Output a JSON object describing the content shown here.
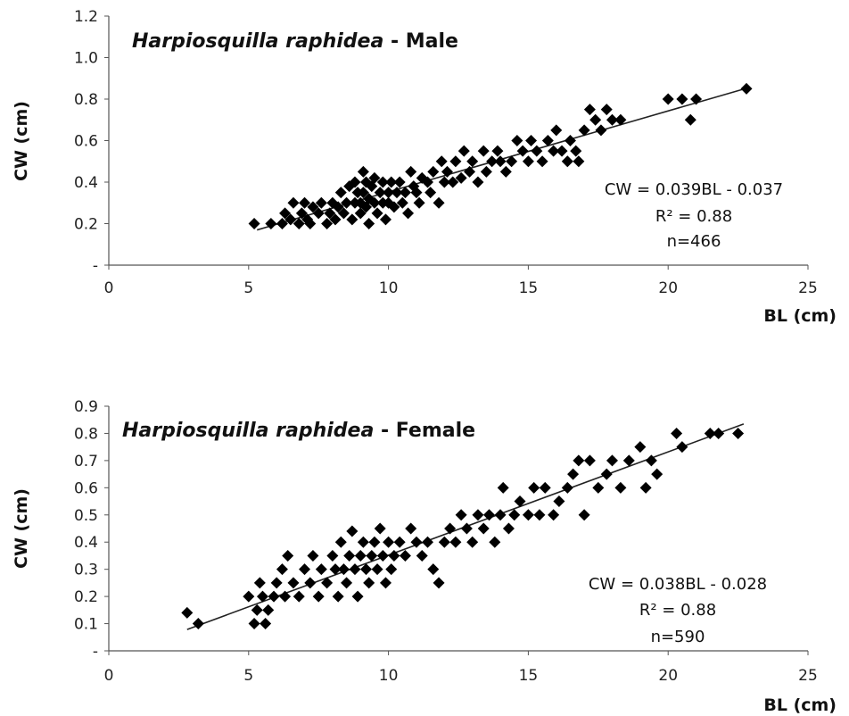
{
  "chart_data": [
    {
      "type": "scatter",
      "title_species": "Harpiosquilla raphidea",
      "title_sex": " - Male",
      "xlabel": "BL (cm)",
      "ylabel": "CW (cm)",
      "xlim": [
        0,
        25
      ],
      "ylim": [
        0,
        1.2
      ],
      "x_ticks": [
        "0",
        "5",
        "10",
        "15",
        "20",
        "25"
      ],
      "y_ticks": [
        "-",
        "0.2",
        "0.4",
        "0.6",
        "0.8",
        "1.0",
        "1.2"
      ],
      "y_tick_values": [
        0,
        0.2,
        0.4,
        0.6,
        0.8,
        1.0,
        1.2
      ],
      "grid": false,
      "legend": "none",
      "marker_color": "#000000",
      "annotation": [
        "CW = 0.039BL - 0.037",
        "R² = 0.88",
        "n=466"
      ],
      "trendline": {
        "slope": 0.039,
        "intercept": -0.037,
        "x_range": [
          5.3,
          22.8
        ]
      },
      "points": [
        [
          5.2,
          0.2
        ],
        [
          5.8,
          0.2
        ],
        [
          6.2,
          0.2
        ],
        [
          6.3,
          0.25
        ],
        [
          6.5,
          0.22
        ],
        [
          6.6,
          0.3
        ],
        [
          6.8,
          0.2
        ],
        [
          6.9,
          0.25
        ],
        [
          7.0,
          0.3
        ],
        [
          7.1,
          0.22
        ],
        [
          7.2,
          0.2
        ],
        [
          7.3,
          0.28
        ],
        [
          7.5,
          0.25
        ],
        [
          7.6,
          0.3
        ],
        [
          7.8,
          0.2
        ],
        [
          7.9,
          0.25
        ],
        [
          8.0,
          0.3
        ],
        [
          8.1,
          0.22
        ],
        [
          8.2,
          0.28
        ],
        [
          8.3,
          0.35
        ],
        [
          8.4,
          0.25
        ],
        [
          8.5,
          0.3
        ],
        [
          8.6,
          0.38
        ],
        [
          8.7,
          0.22
        ],
        [
          8.8,
          0.3
        ],
        [
          8.8,
          0.4
        ],
        [
          8.9,
          0.35
        ],
        [
          9.0,
          0.25
        ],
        [
          9.0,
          0.3
        ],
        [
          9.1,
          0.45
        ],
        [
          9.1,
          0.35
        ],
        [
          9.2,
          0.28
        ],
        [
          9.2,
          0.4
        ],
        [
          9.3,
          0.32
        ],
        [
          9.3,
          0.2
        ],
        [
          9.4,
          0.38
        ],
        [
          9.5,
          0.3
        ],
        [
          9.5,
          0.42
        ],
        [
          9.6,
          0.25
        ],
        [
          9.7,
          0.35
        ],
        [
          9.8,
          0.3
        ],
        [
          9.8,
          0.4
        ],
        [
          9.9,
          0.22
        ],
        [
          10.0,
          0.35
        ],
        [
          10.0,
          0.3
        ],
        [
          10.1,
          0.4
        ],
        [
          10.2,
          0.28
        ],
        [
          10.3,
          0.35
        ],
        [
          10.4,
          0.4
        ],
        [
          10.5,
          0.3
        ],
        [
          10.6,
          0.35
        ],
        [
          10.7,
          0.25
        ],
        [
          10.8,
          0.45
        ],
        [
          10.9,
          0.38
        ],
        [
          11.0,
          0.35
        ],
        [
          11.1,
          0.3
        ],
        [
          11.2,
          0.42
        ],
        [
          11.4,
          0.4
        ],
        [
          11.5,
          0.35
        ],
        [
          11.6,
          0.45
        ],
        [
          11.8,
          0.3
        ],
        [
          11.9,
          0.5
        ],
        [
          12.0,
          0.4
        ],
        [
          12.1,
          0.45
        ],
        [
          12.3,
          0.4
        ],
        [
          12.4,
          0.5
        ],
        [
          12.6,
          0.42
        ],
        [
          12.7,
          0.55
        ],
        [
          12.9,
          0.45
        ],
        [
          13.0,
          0.5
        ],
        [
          13.2,
          0.4
        ],
        [
          13.4,
          0.55
        ],
        [
          13.5,
          0.45
        ],
        [
          13.7,
          0.5
        ],
        [
          13.9,
          0.55
        ],
        [
          14.0,
          0.5
        ],
        [
          14.2,
          0.45
        ],
        [
          14.4,
          0.5
        ],
        [
          14.6,
          0.6
        ],
        [
          14.8,
          0.55
        ],
        [
          15.0,
          0.5
        ],
        [
          15.1,
          0.6
        ],
        [
          15.3,
          0.55
        ],
        [
          15.5,
          0.5
        ],
        [
          15.7,
          0.6
        ],
        [
          15.9,
          0.55
        ],
        [
          16.0,
          0.65
        ],
        [
          16.2,
          0.55
        ],
        [
          16.4,
          0.5
        ],
        [
          16.5,
          0.6
        ],
        [
          16.7,
          0.55
        ],
        [
          16.8,
          0.5
        ],
        [
          17.0,
          0.65
        ],
        [
          17.2,
          0.75
        ],
        [
          17.4,
          0.7
        ],
        [
          17.6,
          0.65
        ],
        [
          17.8,
          0.75
        ],
        [
          18.0,
          0.7
        ],
        [
          18.3,
          0.7
        ],
        [
          20.0,
          0.8
        ],
        [
          20.5,
          0.8
        ],
        [
          20.8,
          0.7
        ],
        [
          21.0,
          0.8
        ],
        [
          22.8,
          0.85
        ]
      ]
    },
    {
      "type": "scatter",
      "title_species": "Harpiosquilla raphidea",
      "title_sex": " - Female",
      "xlabel": "BL (cm)",
      "ylabel": "CW (cm)",
      "xlim": [
        0,
        25
      ],
      "ylim": [
        0,
        0.9
      ],
      "x_ticks": [
        "0",
        "5",
        "10",
        "15",
        "20",
        "25"
      ],
      "y_ticks": [
        "-",
        "0.1",
        "0.2",
        "0.3",
        "0.4",
        "0.5",
        "0.6",
        "0.7",
        "0.8",
        "0.9"
      ],
      "y_tick_values": [
        0,
        0.1,
        0.2,
        0.3,
        0.4,
        0.5,
        0.6,
        0.7,
        0.8,
        0.9
      ],
      "grid": false,
      "legend": "none",
      "marker_color": "#000000",
      "annotation": [
        "CW = 0.038BL - 0.028",
        "R² = 0.88",
        "n=590"
      ],
      "trendline": {
        "slope": 0.038,
        "intercept": -0.028,
        "x_range": [
          2.8,
          22.7
        ]
      },
      "points": [
        [
          2.8,
          0.14
        ],
        [
          3.2,
          0.1
        ],
        [
          5.0,
          0.2
        ],
        [
          5.2,
          0.1
        ],
        [
          5.3,
          0.15
        ],
        [
          5.4,
          0.25
        ],
        [
          5.5,
          0.2
        ],
        [
          5.6,
          0.1
        ],
        [
          5.7,
          0.15
        ],
        [
          5.9,
          0.2
        ],
        [
          6.0,
          0.25
        ],
        [
          6.2,
          0.3
        ],
        [
          6.3,
          0.2
        ],
        [
          6.4,
          0.35
        ],
        [
          6.6,
          0.25
        ],
        [
          6.8,
          0.2
        ],
        [
          7.0,
          0.3
        ],
        [
          7.2,
          0.25
        ],
        [
          7.3,
          0.35
        ],
        [
          7.5,
          0.2
        ],
        [
          7.6,
          0.3
        ],
        [
          7.8,
          0.25
        ],
        [
          8.0,
          0.35
        ],
        [
          8.1,
          0.3
        ],
        [
          8.2,
          0.2
        ],
        [
          8.3,
          0.4
        ],
        [
          8.4,
          0.3
        ],
        [
          8.5,
          0.25
        ],
        [
          8.6,
          0.35
        ],
        [
          8.7,
          0.44
        ],
        [
          8.8,
          0.3
        ],
        [
          8.9,
          0.2
        ],
        [
          9.0,
          0.35
        ],
        [
          9.1,
          0.4
        ],
        [
          9.2,
          0.3
        ],
        [
          9.3,
          0.25
        ],
        [
          9.4,
          0.35
        ],
        [
          9.5,
          0.4
        ],
        [
          9.6,
          0.3
        ],
        [
          9.7,
          0.45
        ],
        [
          9.8,
          0.35
        ],
        [
          9.9,
          0.25
        ],
        [
          10.0,
          0.4
        ],
        [
          10.1,
          0.3
        ],
        [
          10.2,
          0.35
        ],
        [
          10.4,
          0.4
        ],
        [
          10.6,
          0.35
        ],
        [
          10.8,
          0.45
        ],
        [
          11.0,
          0.4
        ],
        [
          11.2,
          0.35
        ],
        [
          11.4,
          0.4
        ],
        [
          11.6,
          0.3
        ],
        [
          11.8,
          0.25
        ],
        [
          12.0,
          0.4
        ],
        [
          12.2,
          0.45
        ],
        [
          12.4,
          0.4
        ],
        [
          12.6,
          0.5
        ],
        [
          12.8,
          0.45
        ],
        [
          13.0,
          0.4
        ],
        [
          13.2,
          0.5
        ],
        [
          13.4,
          0.45
        ],
        [
          13.6,
          0.5
        ],
        [
          13.8,
          0.4
        ],
        [
          14.0,
          0.5
        ],
        [
          14.1,
          0.6
        ],
        [
          14.3,
          0.45
        ],
        [
          14.5,
          0.5
        ],
        [
          14.7,
          0.55
        ],
        [
          15.0,
          0.5
        ],
        [
          15.2,
          0.6
        ],
        [
          15.4,
          0.5
        ],
        [
          15.6,
          0.6
        ],
        [
          15.9,
          0.5
        ],
        [
          16.1,
          0.55
        ],
        [
          16.4,
          0.6
        ],
        [
          16.6,
          0.65
        ],
        [
          16.8,
          0.7
        ],
        [
          17.0,
          0.5
        ],
        [
          17.2,
          0.7
        ],
        [
          17.5,
          0.6
        ],
        [
          17.8,
          0.65
        ],
        [
          18.0,
          0.7
        ],
        [
          18.3,
          0.6
        ],
        [
          18.6,
          0.7
        ],
        [
          19.0,
          0.75
        ],
        [
          19.2,
          0.6
        ],
        [
          19.4,
          0.7
        ],
        [
          19.6,
          0.65
        ],
        [
          20.3,
          0.8
        ],
        [
          20.5,
          0.75
        ],
        [
          21.5,
          0.8
        ],
        [
          21.8,
          0.8
        ],
        [
          22.5,
          0.8
        ]
      ]
    }
  ]
}
